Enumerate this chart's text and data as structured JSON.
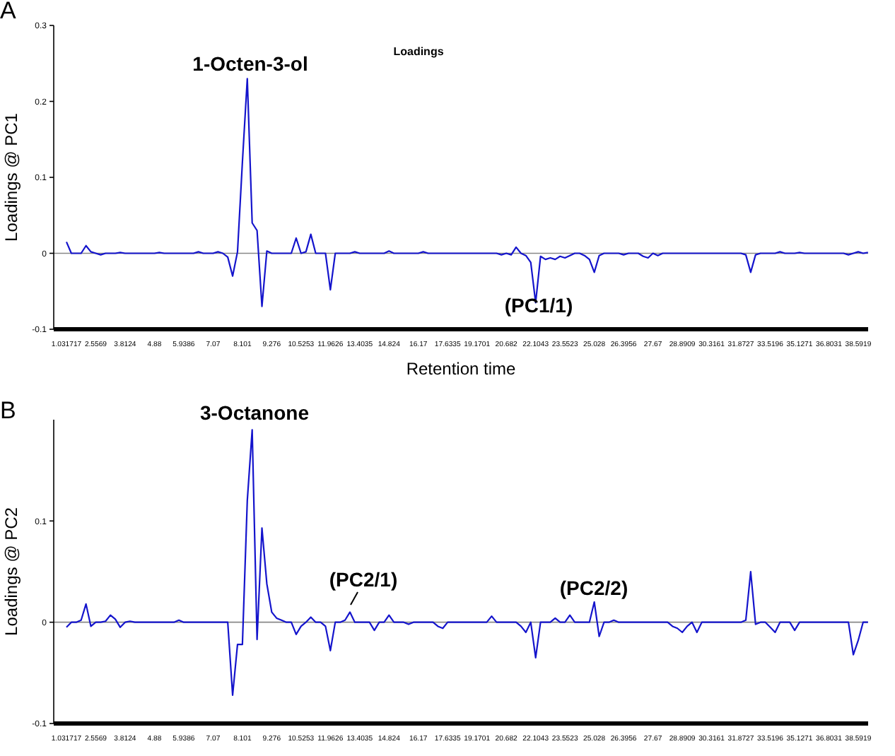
{
  "chart_data": [
    {
      "type": "line",
      "title": "Loadings",
      "xlabel": "Retention time",
      "ylabel": "Loadings @ PC1",
      "annotations": [
        "A",
        "1-Octen-3-ol",
        "(PC1/1)"
      ],
      "categories": [
        "1.031717",
        null,
        null,
        null,
        null,
        null,
        "2.5569",
        null,
        null,
        null,
        null,
        null,
        "3.8124",
        null,
        null,
        null,
        null,
        null,
        "4.88",
        null,
        null,
        null,
        null,
        null,
        "5.9386",
        null,
        null,
        null,
        null,
        null,
        "7.07",
        null,
        null,
        null,
        null,
        null,
        "8.101",
        null,
        null,
        null,
        null,
        null,
        "9.276",
        null,
        null,
        null,
        null,
        null,
        "10.5253",
        null,
        null,
        null,
        null,
        null,
        "11.9626",
        null,
        null,
        null,
        null,
        null,
        "13.4035",
        null,
        null,
        null,
        null,
        null,
        "14.824",
        null,
        null,
        null,
        null,
        null,
        "16.17",
        null,
        null,
        null,
        null,
        null,
        "17.6335",
        null,
        null,
        null,
        null,
        null,
        "19.1701",
        null,
        null,
        null,
        null,
        null,
        "20.682",
        null,
        null,
        null,
        null,
        null,
        "22.1043",
        null,
        null,
        null,
        null,
        null,
        "23.5523",
        null,
        null,
        null,
        null,
        null,
        "25.028",
        null,
        null,
        null,
        null,
        null,
        "26.3956",
        null,
        null,
        null,
        null,
        null,
        "27.67",
        null,
        null,
        null,
        null,
        null,
        "28.8909",
        null,
        null,
        null,
        null,
        null,
        "30.3161",
        null,
        null,
        null,
        null,
        null,
        "31.8727",
        null,
        null,
        null,
        null,
        null,
        "33.5196",
        null,
        null,
        null,
        null,
        null,
        "35.1271",
        null,
        null,
        null,
        null,
        null,
        "36.8031",
        null,
        null,
        null,
        null,
        null,
        "38.5919",
        null,
        null
      ],
      "series": [
        {
          "color": "#1414cc",
          "values": [
            0.015,
            0,
            0,
            0,
            0.01,
            0.002,
            0,
            -0.002,
            0,
            0,
            0,
            0.001,
            0,
            0,
            0,
            0,
            0,
            0,
            0,
            0.001,
            0,
            0,
            0,
            0,
            0,
            0,
            0,
            0.002,
            0,
            0,
            0,
            0.002,
            0,
            -0.005,
            -0.03,
            0.002,
            0.12,
            0.23,
            0.04,
            0.03,
            -0.07,
            0.003,
            0,
            0,
            0,
            0,
            0,
            0.02,
            0,
            0.002,
            0.025,
            0,
            0,
            0,
            -0.048,
            0,
            0,
            0,
            0,
            0.002,
            0,
            0,
            0,
            0,
            0,
            0,
            0.003,
            0,
            0,
            0,
            0,
            0,
            0,
            0.002,
            0,
            0,
            0,
            0,
            0,
            0,
            0,
            0,
            0,
            0,
            0,
            0,
            0,
            0,
            0,
            -0.002,
            0,
            -0.002,
            0.008,
            0,
            -0.003,
            -0.012,
            -0.065,
            -0.004,
            -0.008,
            -0.006,
            -0.008,
            -0.004,
            -0.006,
            -0.003,
            0,
            0,
            -0.003,
            -0.008,
            -0.025,
            -0.003,
            0,
            0,
            0,
            0,
            -0.002,
            0,
            0,
            0,
            -0.004,
            -0.006,
            0,
            -0.003,
            0,
            0,
            0,
            0,
            0,
            0,
            0,
            0,
            0,
            0,
            0,
            0,
            0,
            0,
            0,
            0,
            0,
            -0.002,
            -0.025,
            -0.002,
            0,
            0,
            0,
            0,
            0.002,
            0,
            0,
            0,
            0.001,
            0,
            0,
            0,
            0,
            0,
            0,
            0,
            0,
            0,
            -0.002,
            0,
            0.002,
            0,
            0.001
          ]
        }
      ],
      "ylim": [
        -0.1,
        0.3
      ],
      "yticks": [
        -0.1,
        0,
        0.1,
        0.2,
        0.3
      ],
      "ref_lines": [
        {
          "axis": "y",
          "value": 0,
          "color": "#888888"
        }
      ]
    },
    {
      "type": "line",
      "ylabel": "Loadings @ PC2",
      "annotations": [
        "B",
        "3-Octanone",
        "(PC2/1)",
        "(PC2/2)"
      ],
      "categories": [
        "1.031717",
        null,
        null,
        null,
        null,
        null,
        "2.5569",
        null,
        null,
        null,
        null,
        null,
        "3.8124",
        null,
        null,
        null,
        null,
        null,
        "4.88",
        null,
        null,
        null,
        null,
        null,
        "5.9386",
        null,
        null,
        null,
        null,
        null,
        "7.07",
        null,
        null,
        null,
        null,
        null,
        "8.101",
        null,
        null,
        null,
        null,
        null,
        "9.276",
        null,
        null,
        null,
        null,
        null,
        "10.5253",
        null,
        null,
        null,
        null,
        null,
        "11.9626",
        null,
        null,
        null,
        null,
        null,
        "13.4035",
        null,
        null,
        null,
        null,
        null,
        "14.824",
        null,
        null,
        null,
        null,
        null,
        "16.17",
        null,
        null,
        null,
        null,
        null,
        "17.6335",
        null,
        null,
        null,
        null,
        null,
        "19.1701",
        null,
        null,
        null,
        null,
        null,
        "20.682",
        null,
        null,
        null,
        null,
        null,
        "22.1043",
        null,
        null,
        null,
        null,
        null,
        "23.5523",
        null,
        null,
        null,
        null,
        null,
        "25.028",
        null,
        null,
        null,
        null,
        null,
        "26.3956",
        null,
        null,
        null,
        null,
        null,
        "27.67",
        null,
        null,
        null,
        null,
        null,
        "28.8909",
        null,
        null,
        null,
        null,
        null,
        "30.3161",
        null,
        null,
        null,
        null,
        null,
        "31.8727",
        null,
        null,
        null,
        null,
        null,
        "33.5196",
        null,
        null,
        null,
        null,
        null,
        "35.1271",
        null,
        null,
        null,
        null,
        null,
        "36.8031",
        null,
        null,
        null,
        null,
        null,
        "38.5919",
        null,
        null
      ],
      "series": [
        {
          "color": "#1414cc",
          "values": [
            -0.005,
            0,
            0,
            0.002,
            0.018,
            -0.004,
            0,
            0,
            0.001,
            0.007,
            0.003,
            -0.005,
            0,
            0.001,
            0,
            0,
            0,
            0,
            0,
            0,
            0,
            0,
            0,
            0.002,
            0,
            0,
            0,
            0,
            0,
            0,
            0,
            0,
            0,
            0,
            -0.072,
            -0.022,
            -0.022,
            0.12,
            0.19,
            -0.017,
            0.093,
            0.038,
            0.01,
            0.004,
            0.002,
            0,
            0,
            -0.012,
            -0.004,
            0,
            0.005,
            0,
            0,
            -0.004,
            -0.028,
            0,
            0,
            0.002,
            0.01,
            0,
            0,
            0,
            0,
            -0.008,
            0,
            0,
            0.007,
            0,
            0,
            0,
            -0.002,
            0,
            0,
            0,
            0,
            0,
            -0.004,
            -0.006,
            0,
            0,
            0,
            0,
            0,
            0,
            0,
            0,
            0,
            0.006,
            0,
            0,
            0,
            0,
            0,
            -0.004,
            -0.01,
            0,
            -0.035,
            0,
            0,
            0,
            0.004,
            0,
            0,
            0.007,
            0,
            0,
            0,
            0,
            0.02,
            -0.014,
            0,
            0,
            0.002,
            0,
            0,
            0,
            0,
            0,
            0,
            0,
            0,
            0,
            0,
            0,
            -0.004,
            -0.006,
            -0.01,
            -0.004,
            0,
            -0.01,
            0,
            0,
            0,
            0,
            0,
            0,
            0,
            0,
            0,
            0.002,
            0.05,
            -0.002,
            0,
            0,
            -0.005,
            -0.01,
            0,
            0,
            0,
            -0.008,
            0,
            0,
            0,
            0,
            0,
            0,
            0,
            0,
            0,
            0,
            0,
            -0.032,
            -0.018,
            0,
            0
          ]
        }
      ],
      "ylim": [
        -0.1,
        0.2
      ],
      "yticks": [
        -0.1,
        0,
        0.1
      ],
      "ref_lines": [
        {
          "axis": "y",
          "value": 0,
          "color": "#888888"
        }
      ]
    }
  ]
}
